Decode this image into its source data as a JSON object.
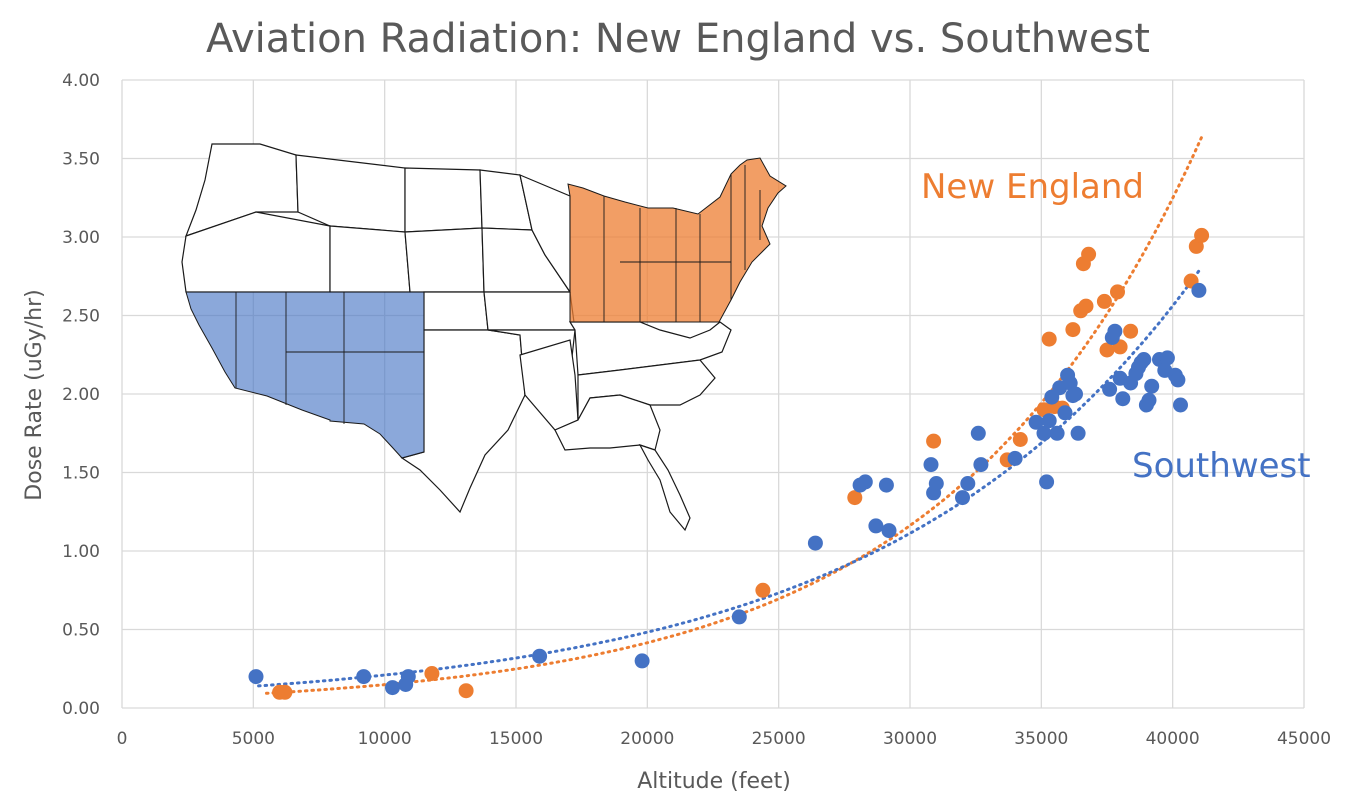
{
  "chart_data": {
    "type": "scatter",
    "title": "Aviation Radiation: New England vs. Southwest",
    "xlabel": "Altitude (feet)",
    "ylabel": "Dose Rate (uGy/hr)",
    "xlim": [
      0,
      45000
    ],
    "ylim": [
      0,
      4
    ],
    "x_ticks": [
      0,
      5000,
      10000,
      15000,
      20000,
      25000,
      30000,
      35000,
      40000,
      45000
    ],
    "y_ticks": [
      "0.00",
      "0.50",
      "1.00",
      "1.50",
      "2.00",
      "2.50",
      "3.00",
      "3.50",
      "4.00"
    ],
    "grid": true,
    "trendline": "exponential, dotted",
    "inset": "map of the contiguous United States with Southwest and New England regions shaded",
    "series": [
      {
        "name": "New England",
        "color": "#ed7d31",
        "trend_range": [
          5500,
          41100
        ],
        "points": [
          [
            6000,
            0.1
          ],
          [
            6200,
            0.1
          ],
          [
            11800,
            0.22
          ],
          [
            13100,
            0.11
          ],
          [
            24400,
            0.75
          ],
          [
            27900,
            1.34
          ],
          [
            30900,
            1.7
          ],
          [
            33700,
            1.58
          ],
          [
            34200,
            1.71
          ],
          [
            35100,
            1.9
          ],
          [
            35300,
            2.35
          ],
          [
            35500,
            1.92
          ],
          [
            35800,
            1.91
          ],
          [
            36200,
            2.41
          ],
          [
            36500,
            2.53
          ],
          [
            36600,
            2.83
          ],
          [
            36700,
            2.56
          ],
          [
            36800,
            2.89
          ],
          [
            37400,
            2.59
          ],
          [
            37500,
            2.28
          ],
          [
            37900,
            2.65
          ],
          [
            38000,
            2.3
          ],
          [
            38400,
            2.4
          ],
          [
            40700,
            2.72
          ],
          [
            40900,
            2.94
          ],
          [
            41100,
            3.01
          ]
        ]
      },
      {
        "name": "Southwest",
        "color": "#4472c4",
        "trend_range": [
          5200,
          41000
        ],
        "points": [
          [
            5100,
            0.2
          ],
          [
            9200,
            0.2
          ],
          [
            10300,
            0.13
          ],
          [
            10800,
            0.15
          ],
          [
            10900,
            0.2
          ],
          [
            15900,
            0.33
          ],
          [
            19800,
            0.3
          ],
          [
            23500,
            0.58
          ],
          [
            26400,
            1.05
          ],
          [
            28100,
            1.42
          ],
          [
            28300,
            1.44
          ],
          [
            28700,
            1.16
          ],
          [
            29100,
            1.42
          ],
          [
            29200,
            1.13
          ],
          [
            30800,
            1.55
          ],
          [
            30900,
            1.37
          ],
          [
            31000,
            1.43
          ],
          [
            32000,
            1.34
          ],
          [
            32200,
            1.43
          ],
          [
            32600,
            1.75
          ],
          [
            32700,
            1.55
          ],
          [
            34000,
            1.59
          ],
          [
            34800,
            1.82
          ],
          [
            35100,
            1.75
          ],
          [
            35200,
            1.44
          ],
          [
            35300,
            1.83
          ],
          [
            35400,
            1.98
          ],
          [
            35600,
            1.75
          ],
          [
            35700,
            2.04
          ],
          [
            35900,
            1.88
          ],
          [
            36000,
            2.12
          ],
          [
            36100,
            2.07
          ],
          [
            36200,
            1.99
          ],
          [
            36300,
            2.0
          ],
          [
            36400,
            1.75
          ],
          [
            37600,
            2.03
          ],
          [
            37700,
            2.36
          ],
          [
            37800,
            2.4
          ],
          [
            38000,
            2.1
          ],
          [
            38100,
            1.97
          ],
          [
            38400,
            2.07
          ],
          [
            38600,
            2.13
          ],
          [
            38700,
            2.17
          ],
          [
            38800,
            2.2
          ],
          [
            38900,
            2.22
          ],
          [
            39000,
            1.93
          ],
          [
            39100,
            1.96
          ],
          [
            39200,
            2.05
          ],
          [
            39500,
            2.22
          ],
          [
            39700,
            2.15
          ],
          [
            39800,
            2.23
          ],
          [
            40100,
            2.12
          ],
          [
            40200,
            2.09
          ],
          [
            40300,
            1.93
          ],
          [
            41000,
            2.66
          ]
        ]
      }
    ]
  }
}
